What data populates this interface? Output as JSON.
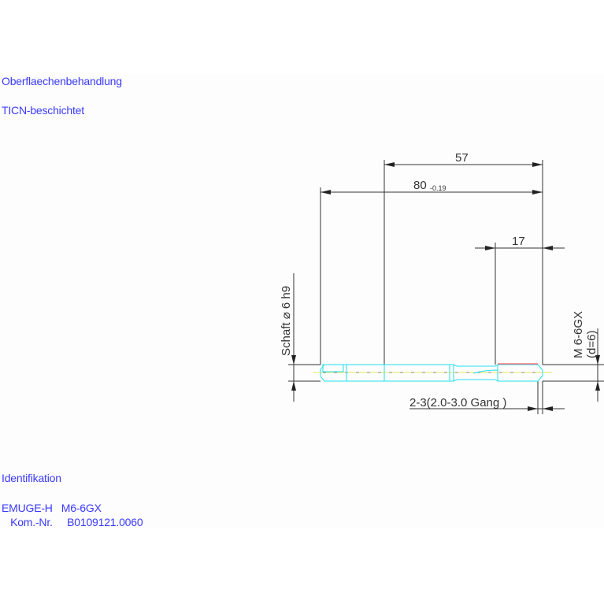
{
  "notes": {
    "surface_heading": "Oberflaechenbehandlung",
    "surface_value": "TICN-beschichtet",
    "ident_heading": "Identifikation",
    "ident_line1": "EMUGE-H   M6-6GX",
    "ident_line2": "   Kom.-Nr.     B0109121.0060"
  },
  "dimensions": {
    "length_57": "57",
    "total_length": "80",
    "total_tolerance": "-0.19",
    "thread_length": "17",
    "shank": "Schaft ⌀ 6 h9",
    "thread_size": "M 6-6GX",
    "thread_d": "(d=6)",
    "chamfer": "2-3(2.0-3.0 Gang  )"
  },
  "colors": {
    "text": "#3a3aff",
    "outline": "#22e0f0",
    "thread": "#ff6060",
    "axis": "#e8e860",
    "dimension": "#333333"
  }
}
